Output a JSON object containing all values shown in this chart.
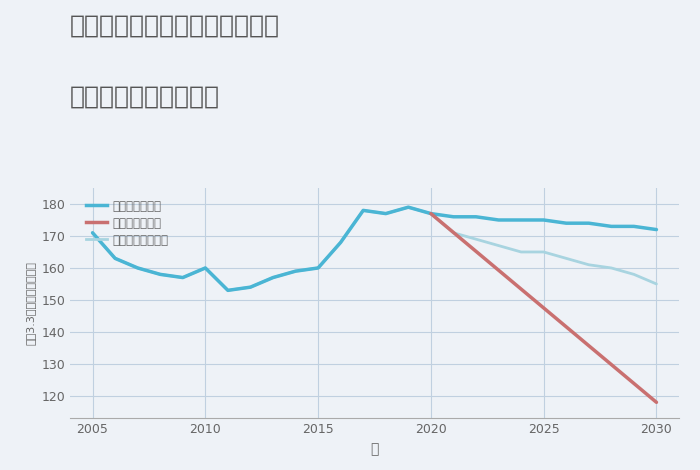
{
  "title_line1": "埼玉県さいたま市南区大谷口の",
  "title_line2": "中古戸建ての価格推移",
  "xlabel": "年",
  "ylabel": "坪（3.3㎡）単価（万円）",
  "background_color": "#eef2f7",
  "plot_background_color": "#eef2f7",
  "grid_color": "#c0d0e0",
  "ylim": [
    113,
    185
  ],
  "yticks": [
    120,
    130,
    140,
    150,
    160,
    170,
    180
  ],
  "xlim": [
    2004,
    2031
  ],
  "xticks": [
    2005,
    2010,
    2015,
    2020,
    2025,
    2030
  ],
  "good_scenario": {
    "x": [
      2005,
      2006,
      2007,
      2008,
      2009,
      2010,
      2011,
      2012,
      2013,
      2014,
      2015,
      2016,
      2017,
      2018,
      2019,
      2020,
      2021,
      2022,
      2023,
      2024,
      2025,
      2026,
      2027,
      2028,
      2029,
      2030
    ],
    "y": [
      171,
      163,
      160,
      158,
      157,
      160,
      153,
      154,
      157,
      159,
      160,
      168,
      178,
      177,
      179,
      177,
      176,
      176,
      175,
      175,
      175,
      174,
      174,
      173,
      173,
      172
    ],
    "color": "#4ab5d4",
    "linewidth": 2.5,
    "label": "グッドシナリオ"
  },
  "bad_scenario": {
    "x": [
      2020,
      2030
    ],
    "y": [
      177,
      118
    ],
    "color": "#c97070",
    "linewidth": 2.5,
    "label": "バッドシナリオ"
  },
  "normal_scenario": {
    "x": [
      2005,
      2006,
      2007,
      2008,
      2009,
      2010,
      2011,
      2012,
      2013,
      2014,
      2015,
      2016,
      2017,
      2018,
      2019,
      2020,
      2021,
      2022,
      2023,
      2024,
      2025,
      2026,
      2027,
      2028,
      2029,
      2030
    ],
    "y": [
      171,
      163,
      160,
      158,
      157,
      160,
      153,
      154,
      157,
      159,
      160,
      168,
      178,
      177,
      179,
      177,
      171,
      169,
      167,
      165,
      165,
      163,
      161,
      160,
      158,
      155
    ],
    "color": "#a8d4e0",
    "linewidth": 2.0,
    "label": "ノーマルシナリオ"
  },
  "title_color": "#555555",
  "title_fontsize": 18,
  "tick_color": "#666666",
  "tick_fontsize": 9,
  "xlabel_fontsize": 10,
  "ylabel_fontsize": 8
}
